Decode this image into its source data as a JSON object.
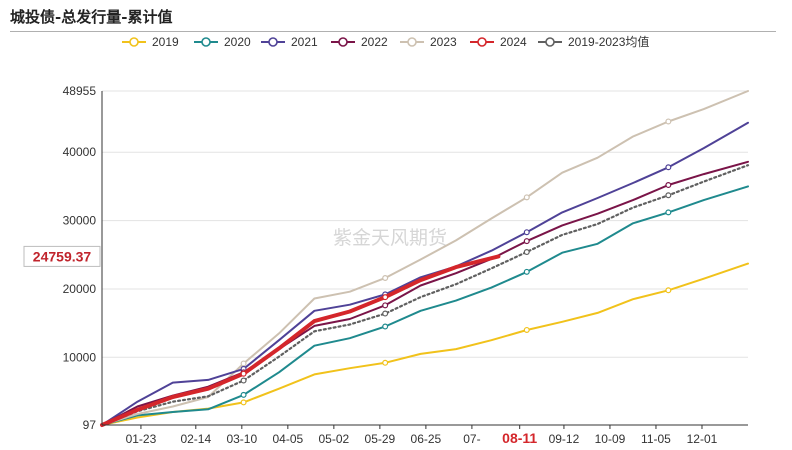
{
  "title": "城投债-总发行量-累计值",
  "watermark": "紫金天风期货",
  "callout": {
    "label": "24759.37",
    "value": 24759.37
  },
  "highlight_x_label": "08-11",
  "colors": {
    "2019": "#f1c21b",
    "2020": "#1f8a8e",
    "2021": "#4f4297",
    "2022": "#7a1448",
    "2023": "#cdc1b1",
    "2024": "#d4262b",
    "avg": "#606060"
  },
  "chart_data": {
    "type": "line",
    "title": "城投债-总发行量-累计值",
    "xlabel": "",
    "ylabel": "",
    "ylim": [
      97,
      48955
    ],
    "xlim": [
      0,
      365
    ],
    "y_ticks": [
      {
        "label": "97",
        "value": 97
      },
      {
        "label": "10000",
        "value": 10000
      },
      {
        "label": "20000",
        "value": 20000
      },
      {
        "label": "30000",
        "value": 30000
      },
      {
        "label": "40000",
        "value": 40000
      },
      {
        "label": "48955",
        "value": 48955
      }
    ],
    "x_ticks": [
      {
        "label": "01-23",
        "day": 22
      },
      {
        "label": "02-14",
        "day": 53
      },
      {
        "label": "03-10",
        "day": 79
      },
      {
        "label": "04-05",
        "day": 105
      },
      {
        "label": "05-02",
        "day": 131
      },
      {
        "label": "05-29",
        "day": 157
      },
      {
        "label": "06-25",
        "day": 183
      },
      {
        "label": "07-",
        "day": 209
      },
      {
        "label": "08-11",
        "day": 236
      },
      {
        "label": "09-12",
        "day": 261
      },
      {
        "label": "10-09",
        "day": 287
      },
      {
        "label": "11-05",
        "day": 313
      },
      {
        "label": "12-01",
        "day": 339
      }
    ],
    "legend": [
      "2019",
      "2020",
      "2021",
      "2022",
      "2023",
      "2024",
      "2019-2023均值"
    ],
    "series": [
      {
        "key": "2019",
        "name": "2019",
        "x": [
          0,
          20,
          40,
          60,
          80,
          100,
          120,
          140,
          160,
          180,
          200,
          220,
          240,
          260,
          280,
          300,
          320,
          340,
          365
        ],
        "y": [
          97,
          1200,
          2000,
          2500,
          3400,
          5400,
          7500,
          8400,
          9200,
          10500,
          11200,
          12500,
          14000,
          15200,
          16500,
          18500,
          19800,
          21500,
          23700
        ]
      },
      {
        "key": "2020",
        "name": "2020",
        "x": [
          0,
          20,
          40,
          60,
          80,
          100,
          120,
          140,
          160,
          180,
          200,
          220,
          240,
          260,
          280,
          300,
          320,
          340,
          365
        ],
        "y": [
          97,
          1500,
          2000,
          2400,
          4500,
          7800,
          11700,
          12800,
          14500,
          16800,
          18300,
          20200,
          22500,
          25300,
          26600,
          29600,
          31200,
          33000,
          35000
        ]
      },
      {
        "key": "2021",
        "name": "2021",
        "x": [
          0,
          20,
          40,
          60,
          80,
          100,
          120,
          140,
          160,
          180,
          200,
          220,
          240,
          260,
          280,
          300,
          320,
          340,
          365
        ],
        "y": [
          97,
          3500,
          6300,
          6700,
          8300,
          12500,
          16800,
          17700,
          19200,
          21700,
          23300,
          25600,
          28300,
          31200,
          33300,
          35500,
          37800,
          40600,
          44300
        ]
      },
      {
        "key": "2022",
        "name": "2022",
        "x": [
          0,
          20,
          40,
          60,
          80,
          100,
          120,
          140,
          160,
          180,
          200,
          220,
          240,
          260,
          280,
          300,
          320,
          340,
          365
        ],
        "y": [
          97,
          2800,
          4400,
          5700,
          7800,
          11200,
          14600,
          15600,
          17600,
          20500,
          22300,
          24400,
          27000,
          29300,
          31000,
          33000,
          35200,
          36800,
          38600
        ]
      },
      {
        "key": "2023",
        "name": "2023",
        "x": [
          0,
          20,
          40,
          60,
          80,
          100,
          120,
          140,
          160,
          180,
          200,
          220,
          240,
          260,
          280,
          300,
          320,
          340,
          365
        ],
        "y": [
          97,
          1700,
          2800,
          4200,
          9100,
          13500,
          18600,
          19600,
          21600,
          24300,
          27100,
          30300,
          33400,
          37000,
          39200,
          42300,
          44500,
          46300,
          48955
        ]
      },
      {
        "key": "2024",
        "name": "2024",
        "x": [
          0,
          20,
          40,
          60,
          80,
          100,
          120,
          140,
          160,
          180,
          200,
          224
        ],
        "y": [
          97,
          2300,
          4200,
          5400,
          7600,
          11300,
          15300,
          16700,
          18800,
          21300,
          23200,
          24759.37
        ]
      },
      {
        "key": "avg",
        "name": "2019-2023均值",
        "x": [
          0,
          20,
          40,
          60,
          80,
          100,
          120,
          140,
          160,
          180,
          200,
          220,
          240,
          260,
          280,
          300,
          320,
          340,
          365
        ],
        "y": [
          97,
          2100,
          3500,
          4300,
          6600,
          10100,
          13800,
          14800,
          16400,
          18800,
          20700,
          23000,
          25400,
          27900,
          29500,
          31900,
          33700,
          35700,
          38100
        ]
      }
    ]
  }
}
